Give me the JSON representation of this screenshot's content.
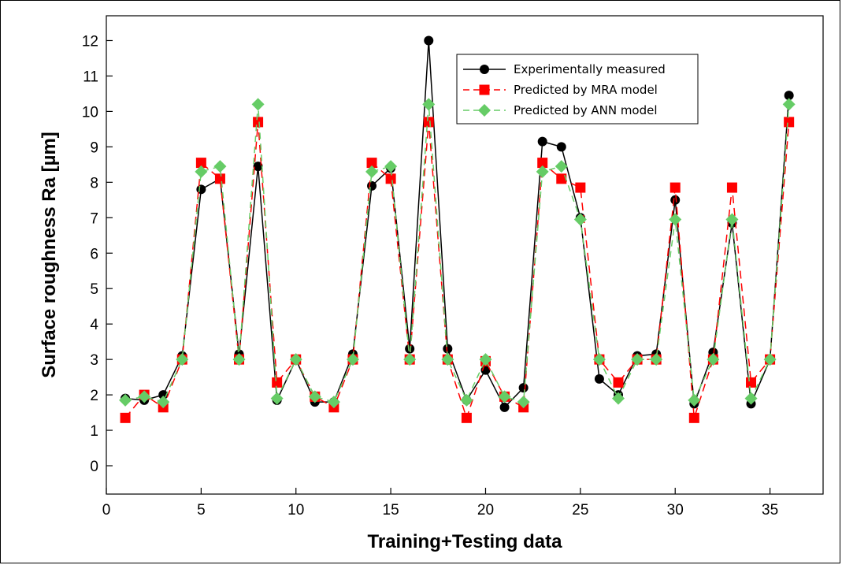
{
  "chart_data": {
    "type": "line",
    "title": "",
    "xlabel": "Training+Testing data",
    "ylabel": "Surface roughness Ra [µm]",
    "xlim": [
      0,
      37.8
    ],
    "ylim": [
      -0.8,
      12.7
    ],
    "xticks": [
      0,
      5,
      10,
      15,
      20,
      25,
      30,
      35
    ],
    "yticks": [
      0,
      1,
      2,
      3,
      4,
      5,
      6,
      7,
      8,
      9,
      10,
      11,
      12
    ],
    "grid": false,
    "legend_position": "top-right",
    "x": [
      1,
      2,
      3,
      4,
      5,
      6,
      7,
      8,
      9,
      10,
      11,
      12,
      13,
      14,
      15,
      16,
      17,
      18,
      19,
      20,
      21,
      22,
      23,
      24,
      25,
      26,
      27,
      28,
      29,
      30,
      31,
      32,
      33,
      34,
      35,
      36
    ],
    "series": [
      {
        "name": "Experimentally measured",
        "color": "#000000",
        "marker": "circle",
        "line": "solid",
        "values": [
          1.9,
          1.85,
          2.0,
          3.1,
          7.8,
          8.1,
          3.15,
          8.45,
          1.85,
          3.0,
          1.8,
          1.8,
          3.15,
          7.9,
          8.4,
          3.3,
          12.0,
          3.3,
          1.85,
          2.7,
          1.65,
          2.2,
          9.15,
          9.0,
          7.0,
          2.45,
          2.0,
          3.1,
          3.15,
          7.5,
          1.75,
          3.2,
          6.85,
          1.75,
          3.0,
          10.45
        ]
      },
      {
        "name": "Predicted by MRA model",
        "color": "#ff0000",
        "marker": "square",
        "line": "dashed",
        "values": [
          1.35,
          2.0,
          1.65,
          3.0,
          8.55,
          8.1,
          3.0,
          9.7,
          2.35,
          3.0,
          1.95,
          1.65,
          3.0,
          8.55,
          8.1,
          3.0,
          9.7,
          3.0,
          1.35,
          2.95,
          1.95,
          1.65,
          8.55,
          8.1,
          7.85,
          3.0,
          2.35,
          3.0,
          3.0,
          7.85,
          1.35,
          3.0,
          7.85,
          2.35,
          3.0,
          9.7
        ]
      },
      {
        "name": "Predicted by ANN model",
        "color": "#66cc66",
        "marker": "diamond",
        "line": "dashed",
        "values": [
          1.85,
          1.95,
          1.8,
          3.0,
          8.3,
          8.45,
          3.0,
          10.2,
          1.9,
          3.0,
          1.95,
          1.8,
          3.0,
          8.3,
          8.45,
          3.0,
          10.2,
          3.0,
          1.85,
          3.0,
          1.95,
          1.8,
          8.3,
          8.45,
          6.95,
          3.0,
          1.9,
          3.0,
          3.0,
          6.95,
          1.85,
          3.0,
          6.95,
          1.9,
          3.0,
          10.2
        ]
      }
    ]
  }
}
